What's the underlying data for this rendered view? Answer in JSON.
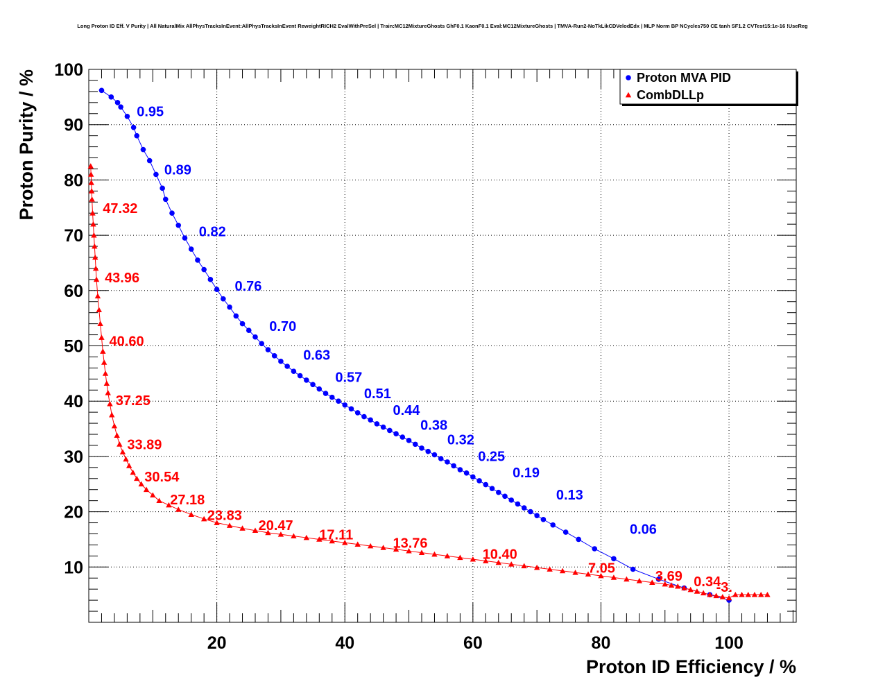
{
  "title": "Long Proton ID Eff. V Purity | All NaturalMix AllPhysTracksInEvent:AllPhysTracksInEvent ReweightRICH2 EvalWithPreSel | Train:MC12MixtureGhosts GhF0.1 KaonF0.1 Eval:MC12MixtureGhosts | TMVA-Run2-NoTkLikCDVelodEdx | MLP Norm BP NCycles750 CE tanh SF1.2 CVTest15:1e-16 !UseReg",
  "chart_data": {
    "type": "scatter",
    "xlabel": "Proton ID Efficiency / %",
    "ylabel": "Proton Purity / %",
    "xlim": [
      0,
      110.5
    ],
    "ylim": [
      0,
      100
    ],
    "x_ticks": [
      20,
      40,
      60,
      80,
      100
    ],
    "y_ticks": [
      10,
      20,
      30,
      40,
      50,
      60,
      70,
      80,
      90,
      100
    ],
    "grid": true,
    "legend_position": "top-right",
    "series": [
      {
        "name": "Proton MVA PID",
        "color": "#0000ff",
        "marker": "circle",
        "x": [
          2.0,
          3.5,
          4.5,
          5.0,
          6.0,
          7.0,
          7.5,
          8.5,
          9.5,
          10.5,
          11.5,
          12.0,
          13.0,
          14.0,
          15.0,
          16.0,
          17.0,
          18.0,
          19.0,
          20.0,
          21.0,
          22.0,
          23.0,
          24.0,
          25.0,
          26.0,
          27.0,
          28.0,
          29.0,
          30.0,
          31.0,
          32.0,
          33.0,
          34.0,
          35.0,
          36.0,
          37.0,
          38.0,
          39.0,
          40.0,
          41.0,
          42.0,
          43.0,
          44.0,
          45.0,
          46.0,
          47.0,
          48.0,
          49.0,
          50.0,
          51.0,
          52.0,
          53.0,
          54.0,
          55.0,
          56.0,
          57.0,
          58.0,
          59.0,
          60.0,
          61.0,
          62.0,
          63.0,
          64.0,
          65.0,
          66.0,
          67.0,
          68.0,
          69.0,
          70.0,
          71.0,
          72.5,
          74.5,
          76.5,
          79.0,
          82.0,
          85.0,
          89.0,
          93.0,
          97.0,
          100.0
        ],
        "y": [
          96.2,
          95.0,
          94.0,
          93.2,
          91.5,
          89.5,
          88.0,
          85.5,
          83.5,
          81.0,
          78.5,
          76.5,
          74.0,
          71.8,
          69.5,
          67.5,
          65.5,
          63.8,
          62.0,
          60.2,
          58.5,
          57.0,
          55.4,
          54.0,
          52.8,
          51.6,
          50.4,
          49.3,
          48.2,
          47.2,
          46.3,
          45.4,
          44.6,
          43.8,
          43.0,
          42.2,
          41.4,
          40.7,
          40.0,
          39.3,
          38.6,
          37.9,
          37.2,
          36.6,
          35.9,
          35.3,
          34.7,
          34.1,
          33.5,
          32.9,
          32.2,
          31.5,
          30.9,
          30.3,
          29.6,
          29.0,
          28.3,
          27.6,
          27.0,
          26.3,
          25.6,
          24.9,
          24.2,
          23.5,
          22.8,
          22.1,
          21.4,
          20.7,
          20.0,
          19.3,
          18.6,
          17.6,
          16.3,
          15.0,
          13.3,
          11.5,
          9.6,
          7.8,
          6.2,
          5.0,
          4.0
        ],
        "cut_labels": [
          {
            "text": "0.95",
            "x": 7.5,
            "y": 91.5
          },
          {
            "text": "0.89",
            "x": 11.8,
            "y": 81.0
          },
          {
            "text": "0.82",
            "x": 17.2,
            "y": 69.8
          },
          {
            "text": "0.76",
            "x": 22.8,
            "y": 60.0
          },
          {
            "text": "0.70",
            "x": 28.2,
            "y": 52.7
          },
          {
            "text": "0.63",
            "x": 33.5,
            "y": 47.5
          },
          {
            "text": "0.57",
            "x": 38.5,
            "y": 43.5
          },
          {
            "text": "0.51",
            "x": 43.0,
            "y": 40.5
          },
          {
            "text": "0.44",
            "x": 47.5,
            "y": 37.5
          },
          {
            "text": "0.38",
            "x": 51.8,
            "y": 34.8
          },
          {
            "text": "0.32",
            "x": 56.0,
            "y": 32.2
          },
          {
            "text": "0.25",
            "x": 60.8,
            "y": 29.2
          },
          {
            "text": "0.19",
            "x": 66.2,
            "y": 26.2
          },
          {
            "text": "0.13",
            "x": 73.0,
            "y": 22.2
          },
          {
            "text": "0.06",
            "x": 84.5,
            "y": 16.0
          }
        ]
      },
      {
        "name": "CombDLLp",
        "color": "#ff0000",
        "marker": "triangle",
        "x": [
          0.3,
          0.35,
          0.4,
          0.45,
          0.5,
          0.6,
          0.7,
          0.8,
          0.9,
          1.0,
          1.1,
          1.2,
          1.4,
          1.6,
          1.8,
          2.0,
          2.2,
          2.4,
          2.6,
          2.8,
          3.0,
          3.3,
          3.6,
          4.0,
          4.4,
          4.8,
          5.3,
          5.8,
          6.3,
          6.9,
          7.5,
          8.2,
          9.0,
          10.0,
          11.0,
          12.5,
          14.0,
          16.0,
          18.0,
          20.0,
          22.0,
          24.0,
          26.0,
          28.0,
          30.0,
          32.0,
          34.0,
          36.0,
          38.0,
          40.0,
          42.0,
          44.0,
          46.0,
          48.0,
          50.0,
          52.0,
          54.0,
          56.0,
          58.0,
          60.0,
          62.0,
          64.0,
          66.0,
          68.0,
          70.0,
          72.0,
          74.0,
          76.0,
          78.0,
          80.0,
          82.0,
          84.0,
          86.0,
          88.0,
          90.0,
          91.0,
          92.0,
          93.0,
          94.0,
          95.0,
          96.0,
          97.0,
          98.0,
          99.0,
          100.0,
          101.0,
          102.0,
          103.0,
          104.0,
          105.0,
          106.0
        ],
        "y": [
          82.5,
          81.0,
          79.5,
          78.0,
          76.5,
          74.0,
          72.0,
          70.0,
          68.0,
          66.0,
          64.0,
          62.0,
          59.0,
          56.5,
          54.0,
          51.5,
          49.0,
          47.0,
          45.0,
          43.2,
          41.5,
          39.5,
          37.5,
          35.5,
          33.8,
          32.2,
          30.8,
          29.5,
          28.3,
          27.1,
          26.0,
          25.0,
          24.0,
          23.0,
          22.0,
          21.2,
          20.4,
          19.5,
          18.7,
          18.0,
          17.5,
          17.0,
          16.6,
          16.2,
          15.9,
          15.6,
          15.3,
          15.0,
          14.7,
          14.4,
          14.1,
          13.8,
          13.5,
          13.2,
          12.9,
          12.6,
          12.3,
          12.0,
          11.7,
          11.4,
          11.1,
          10.8,
          10.5,
          10.2,
          9.9,
          9.6,
          9.3,
          9.0,
          8.7,
          8.4,
          8.1,
          7.8,
          7.5,
          7.2,
          6.9,
          6.7,
          6.5,
          6.2,
          5.9,
          5.6,
          5.3,
          5.0,
          4.8,
          4.6,
          4.4,
          5.0,
          5.0,
          5.0,
          5.0,
          5.0,
          5.0
        ],
        "cut_labels": [
          {
            "text": "47.32",
            "x": 2.2,
            "y": 74.0
          },
          {
            "text": "43.96",
            "x": 2.5,
            "y": 61.5
          },
          {
            "text": "40.60",
            "x": 3.2,
            "y": 50.0
          },
          {
            "text": "37.25",
            "x": 4.2,
            "y": 39.3
          },
          {
            "text": "33.89",
            "x": 6.0,
            "y": 31.3
          },
          {
            "text": "30.54",
            "x": 8.7,
            "y": 25.5
          },
          {
            "text": "27.18",
            "x": 12.7,
            "y": 21.3
          },
          {
            "text": "23.83",
            "x": 18.5,
            "y": 18.5
          },
          {
            "text": "20.47",
            "x": 26.5,
            "y": 16.7
          },
          {
            "text": "17.11",
            "x": 36.0,
            "y": 15.0
          },
          {
            "text": "13.76",
            "x": 47.5,
            "y": 13.5
          },
          {
            "text": "10.40",
            "x": 61.5,
            "y": 11.5
          },
          {
            "text": "7.05",
            "x": 78.0,
            "y": 9.0
          },
          {
            "text": "3.69",
            "x": 88.5,
            "y": 7.5
          },
          {
            "text": "0.34",
            "x": 94.5,
            "y": 6.5
          },
          {
            "text": "-3.",
            "x": 98.0,
            "y": 5.5
          }
        ]
      }
    ]
  }
}
